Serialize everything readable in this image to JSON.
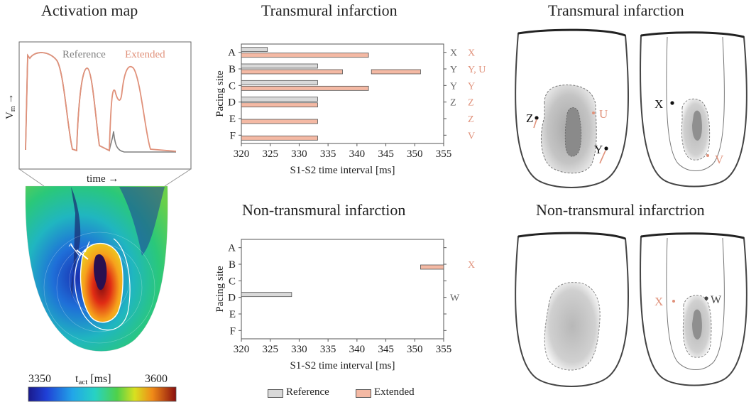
{
  "titles": {
    "activation_map": "Activation map",
    "transmural_chart": "Transmural infarction",
    "nontransmural_chart": "Non-transmural infarction",
    "transmural_hearts": "Transmural infarction",
    "nontransmural_hearts": "Non-transmural infarctrion"
  },
  "ap_plot": {
    "ylabel_main": "V",
    "ylabel_sub": "m",
    "ylabel_arrow": "→",
    "xlabel": "time →",
    "legend_reference": "Reference",
    "legend_extended": "Extended",
    "color_reference": "#808080",
    "color_extended": "#e0917a"
  },
  "colorbar": {
    "min_label": "3350",
    "max_label": "3600",
    "label_main": "t",
    "label_sub": "act",
    "label_unit": " [ms]"
  },
  "legend": {
    "reference": "Reference",
    "extended": "Extended",
    "reference_color": "#d9d9d9",
    "extended_color": "#f4b9a4"
  },
  "hearts": {
    "transmural_labels": [
      "Z",
      "U",
      "Y",
      "X",
      "V"
    ],
    "nontransmural_labels": [
      "X",
      "W"
    ]
  },
  "chart_data": [
    {
      "type": "bar",
      "orientation": "horizontal",
      "title": "Transmural infarction",
      "xlabel": "S1-S2 time interval [ms]",
      "ylabel": "Pacing site",
      "xlim": [
        320,
        355
      ],
      "xticks": [
        320,
        325,
        330,
        335,
        340,
        345,
        350,
        355
      ],
      "categories": [
        "A",
        "B",
        "C",
        "D",
        "E",
        "F"
      ],
      "series": [
        {
          "name": "Reference",
          "intervals": [
            [
              [
                320,
                324.5
              ]
            ],
            [
              [
                320,
                333.2
              ]
            ],
            [
              [
                320,
                333.2
              ]
            ],
            [
              [
                320,
                333.2
              ]
            ],
            [],
            []
          ]
        },
        {
          "name": "Extended",
          "intervals": [
            [
              [
                320,
                342
              ]
            ],
            [
              [
                320,
                337.5
              ],
              [
                342.5,
                351
              ]
            ],
            [
              [
                320,
                342
              ]
            ],
            [
              [
                320,
                333.2
              ]
            ],
            [
              [
                320,
                333.2
              ]
            ],
            [
              [
                320,
                333.2
              ]
            ]
          ]
        }
      ],
      "right_labels_reference": [
        "X",
        "Y",
        "Y",
        "Z",
        "",
        ""
      ],
      "right_labels_extended": [
        "X",
        "Y, U",
        "Y",
        "Z",
        "Z",
        "V"
      ]
    },
    {
      "type": "bar",
      "orientation": "horizontal",
      "title": "Non-transmural infarction",
      "xlabel": "S1-S2 time interval [ms]",
      "ylabel": "Pacing site",
      "xlim": [
        320,
        355
      ],
      "xticks": [
        320,
        325,
        330,
        335,
        340,
        345,
        350,
        355
      ],
      "categories": [
        "A",
        "B",
        "C",
        "D",
        "E",
        "F"
      ],
      "series": [
        {
          "name": "Reference",
          "intervals": [
            [],
            [],
            [],
            [
              [
                320,
                328.7
              ]
            ],
            [],
            []
          ]
        },
        {
          "name": "Extended",
          "intervals": [
            [],
            [
              [
                351,
                355
              ]
            ],
            [],
            [],
            [],
            []
          ]
        }
      ],
      "right_labels_reference": [
        "",
        "",
        "",
        "W",
        "",
        ""
      ],
      "right_labels_extended": [
        "",
        "X",
        "",
        "",
        "",
        ""
      ]
    }
  ]
}
